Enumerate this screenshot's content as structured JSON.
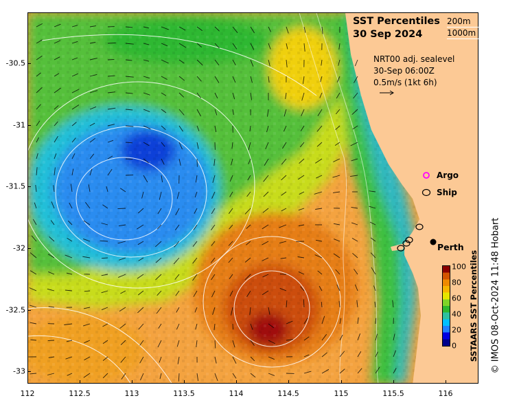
{
  "title": {
    "line1": "SST Percentiles",
    "line2": "30 Sep 2024"
  },
  "contour_key": {
    "shallow": "200m",
    "deep": "1000m"
  },
  "current_info": {
    "line1": "NRT00 adj. sealevel",
    "line2": "30-Sep 06:00Z",
    "line3": "0.5m/s (1kt 6h)"
  },
  "legend": {
    "argo": "Argo",
    "ship": "Ship"
  },
  "place": {
    "name": "Perth"
  },
  "colorbar": {
    "title": "SSTAARS SST Percentiles",
    "ticks": [
      "100",
      "80",
      "60",
      "40",
      "20",
      "0"
    ],
    "colors": [
      "#00008b",
      "#0000e0",
      "#1f7fff",
      "#00c0ff",
      "#2ec0a0",
      "#2eb82e",
      "#7fd427",
      "#e6e600",
      "#f7b500",
      "#ef8a00",
      "#d35400",
      "#8b0000"
    ]
  },
  "credit": "© IMOS 08-Oct-2024 11:48 Hobart",
  "axes": {
    "x_ticks": [
      "112",
      "112.5",
      "113",
      "113.5",
      "114",
      "114.5",
      "115",
      "115.5",
      "116"
    ],
    "y_ticks": [
      "-30.5",
      "-31",
      "-31.5",
      "-32",
      "-32.5",
      "-33"
    ]
  },
  "colors": {
    "land": "#fcc995",
    "argo_marker": "#ff00ff",
    "ship_marker": "#000000"
  }
}
